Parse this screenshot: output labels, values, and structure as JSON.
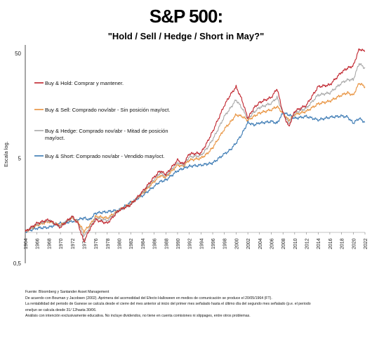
{
  "title": "S&P 500:",
  "subtitle": "\"Hold /  Sell  /  Hedge  /  Short in May?\"",
  "chart_data": {
    "type": "line",
    "title": "S&P 500:",
    "subtitle": "\"Hold /  Sell  /  Hedge  /  Short in May?\"",
    "xlabel": "",
    "ylabel": "Escala log.",
    "yscale": "log",
    "ylim": [
      0.5,
      60
    ],
    "yticks": [
      {
        "value": 0.5,
        "label": "0,5"
      },
      {
        "value": 5,
        "label": "5"
      },
      {
        "value": 50,
        "label": "50"
      }
    ],
    "xlim": [
      1964,
      2022
    ],
    "xticks": [
      "1964",
      "1966",
      "1968",
      "1970",
      "1972",
      "1974",
      "1976",
      "1978",
      "1980",
      "1982",
      "1984",
      "1986",
      "1988",
      "1990",
      "1992",
      "1994",
      "1996",
      "1998",
      "2000",
      "2002",
      "2004",
      "2006",
      "2008",
      "2010",
      "2012",
      "2014",
      "2016",
      "2018",
      "2020",
      "2022"
    ],
    "grid": false,
    "legend_position": "left",
    "colors": {
      "hold": "#c0232c",
      "sell": "#e8913c",
      "hedge": "#a8a8a8",
      "short": "#3a79b3"
    },
    "x": [
      1964,
      1966,
      1968,
      1970,
      1972,
      1973,
      1974,
      1975,
      1976,
      1978,
      1980,
      1982,
      1984,
      1986,
      1987,
      1988,
      1990,
      1991,
      1992,
      1994,
      1995,
      1996,
      1998,
      1999,
      2000,
      2001,
      2002,
      2003,
      2004,
      2006,
      2007,
      2008,
      2009,
      2010,
      2012,
      2014,
      2016,
      2018,
      2019,
      2020,
      2021,
      2022
    ],
    "series": [
      {
        "name": "Buy & Hold: Comprar y mantener.",
        "values": [
          1.0,
          1.2,
          1.3,
          1.1,
          1.4,
          1.2,
          0.8,
          1.05,
          1.3,
          1.2,
          1.6,
          1.8,
          2.4,
          3.3,
          3.8,
          3.5,
          4.8,
          4.4,
          5.5,
          5.6,
          7.0,
          9.0,
          16.0,
          20.0,
          24.0,
          18.0,
          12.0,
          15.0,
          17.0,
          19.0,
          23.0,
          13.5,
          10.0,
          14.0,
          16.0,
          24.0,
          25.0,
          33.0,
          36.0,
          38.0,
          55.0,
          52.0
        ]
      },
      {
        "name": "Buy & Sell: Comprado nov/abr -  Sin posición may/oct.",
        "values": [
          1.0,
          1.15,
          1.25,
          1.15,
          1.35,
          1.25,
          1.0,
          1.15,
          1.4,
          1.35,
          1.6,
          1.85,
          2.3,
          3.0,
          3.4,
          3.3,
          4.3,
          4.2,
          4.8,
          5.0,
          5.5,
          6.3,
          9.5,
          11.0,
          13.0,
          12.5,
          11.5,
          12.5,
          13.5,
          14.5,
          15.5,
          13.5,
          11.5,
          13.0,
          14.0,
          16.5,
          17.5,
          20.0,
          21.0,
          20.0,
          26.0,
          24.0
        ]
      },
      {
        "name": "Buy & Hedge: Comprado nov/abr - Mitad de posición may/oct.",
        "values": [
          1.0,
          1.18,
          1.28,
          1.12,
          1.38,
          1.22,
          0.9,
          1.1,
          1.35,
          1.28,
          1.6,
          1.82,
          2.35,
          3.15,
          3.6,
          3.4,
          4.55,
          4.3,
          5.15,
          5.3,
          6.2,
          7.5,
          12.5,
          15.0,
          18.0,
          15.0,
          11.8,
          13.7,
          15.2,
          16.7,
          19.0,
          13.5,
          10.7,
          13.5,
          15.0,
          20.0,
          21.0,
          26.0,
          28.0,
          28.0,
          40.0,
          36.0
        ]
      },
      {
        "name": "Buy & Short: Comprado nov/abr - Vendido may/oct.",
        "values": [
          1.0,
          1.08,
          1.1,
          1.2,
          1.25,
          1.3,
          1.35,
          1.3,
          1.5,
          1.55,
          1.6,
          1.9,
          2.2,
          2.7,
          3.0,
          3.1,
          3.8,
          4.0,
          4.2,
          4.3,
          4.4,
          4.5,
          5.5,
          6.0,
          7.0,
          8.5,
          11.0,
          10.4,
          10.8,
          11.2,
          10.8,
          13.5,
          13.0,
          12.0,
          12.5,
          11.6,
          12.3,
          12.6,
          12.4,
          10.8,
          12.0,
          11.0
        ]
      }
    ]
  },
  "notes": [
    "Fuente: Bloomberg y Santander Asset Management",
    "De acuerdo con Bouman y Jacobsen (2002). Aprimera del acomodidad del Efecto Halloween en medios de comunicación se produce el 20/05/1964 (FT).",
    "La rentabilidad del periodo de Ganese se calcula desde el cierre del mes anterior al inicio del primer mes señalado hasta el último día del segundo mes señalado (p.e. el periodo",
    "ene/jun se calcula desde 31/ 12hasta 30/06.",
    "Análisis con intención exclusivamente educativa. No incluye dividendos, no tiene en cuenta comisiones ni slippages, entre otros problemas."
  ]
}
